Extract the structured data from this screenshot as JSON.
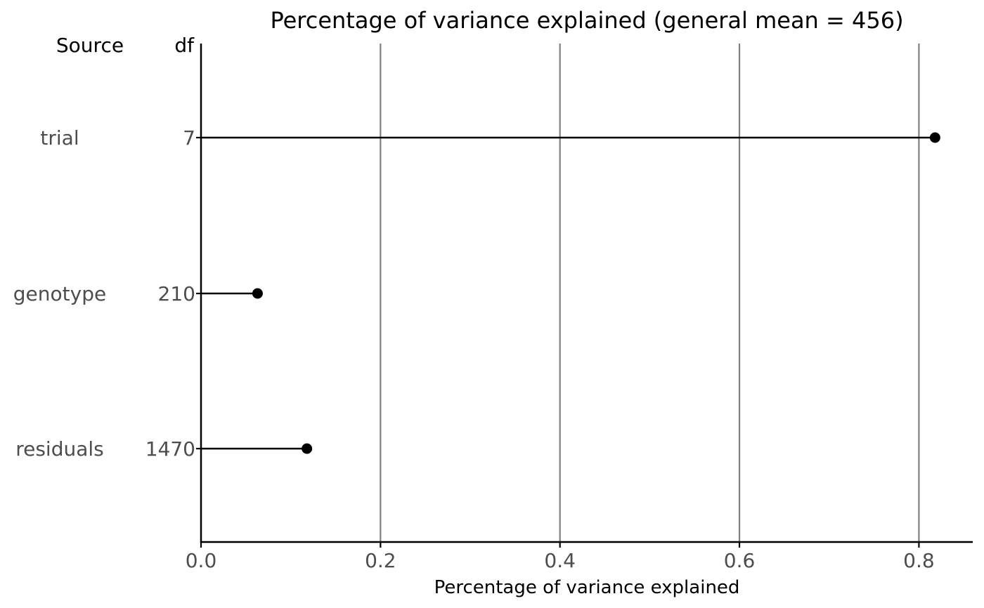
{
  "chart_data": {
    "type": "lollipop",
    "title": "Percentage of variance explained (general mean = 456)",
    "xlabel": "Percentage of variance explained",
    "table_headers": {
      "source": "Source",
      "df": "df"
    },
    "rows": [
      {
        "source": "trial",
        "df": "7",
        "value": 0.818
      },
      {
        "source": "genotype",
        "df": "210",
        "value": 0.063
      },
      {
        "source": "residuals",
        "df": "1470",
        "value": 0.118
      }
    ],
    "xlim": [
      0,
      0.86
    ],
    "xticks": [
      0.0,
      0.2,
      0.4,
      0.6,
      0.8
    ],
    "xtick_labels": [
      "0.0",
      "0.2",
      "0.4",
      "0.6",
      "0.8"
    ],
    "grid": "vertical major gridlines",
    "colors": {
      "points": "#000000",
      "grid": "#808080",
      "axis": "#000000",
      "label_text": "#4d4d4d"
    }
  }
}
